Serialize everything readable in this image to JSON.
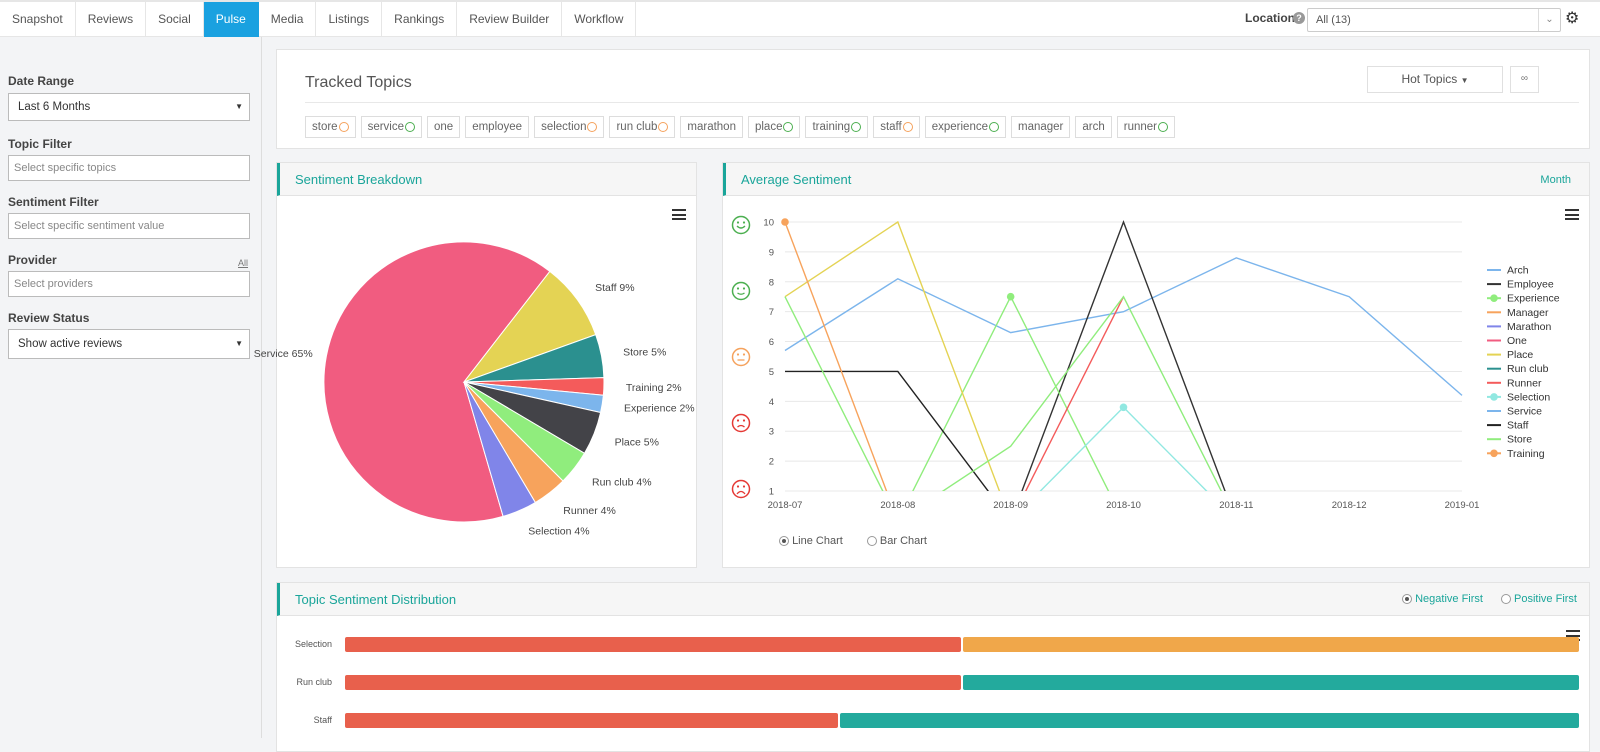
{
  "nav": {
    "tabs": [
      "Snapshot",
      "Reviews",
      "Social",
      "Pulse",
      "Media",
      "Listings",
      "Rankings",
      "Review Builder",
      "Workflow"
    ],
    "active_tab": "Pulse",
    "location_label": "Location",
    "location_value": "All (13)"
  },
  "sidebar": {
    "date_range": {
      "label": "Date Range",
      "value": "Last 6 Months"
    },
    "topic_filter": {
      "label": "Topic Filter",
      "placeholder": "Select specific topics"
    },
    "sentiment_filter": {
      "label": "Sentiment Filter",
      "placeholder": "Select specific sentiment value"
    },
    "provider": {
      "label": "Provider",
      "all_link": "All",
      "placeholder": "Select providers"
    },
    "review_status": {
      "label": "Review Status",
      "value": "Show active reviews"
    }
  },
  "tracked_topics": {
    "title": "Tracked Topics",
    "hot_topics_label": "Hot Topics",
    "more_label": "∞",
    "tags": [
      {
        "name": "store",
        "sentiment": "neutral"
      },
      {
        "name": "service",
        "sentiment": "positive"
      },
      {
        "name": "one",
        "sentiment": "none"
      },
      {
        "name": "employee",
        "sentiment": "none"
      },
      {
        "name": "selection",
        "sentiment": "neutral"
      },
      {
        "name": "run club",
        "sentiment": "neutral"
      },
      {
        "name": "marathon",
        "sentiment": "none"
      },
      {
        "name": "place",
        "sentiment": "positive"
      },
      {
        "name": "training",
        "sentiment": "positive"
      },
      {
        "name": "staff",
        "sentiment": "neutral"
      },
      {
        "name": "experience",
        "sentiment": "positive"
      },
      {
        "name": "manager",
        "sentiment": "none"
      },
      {
        "name": "arch",
        "sentiment": "none"
      },
      {
        "name": "runner",
        "sentiment": "positive"
      }
    ]
  },
  "sentiment_breakdown": {
    "title": "Sentiment Breakdown"
  },
  "average_sentiment": {
    "title": "Average Sentiment",
    "period_label": "Month",
    "chart_type_options": [
      "Line Chart",
      "Bar Chart"
    ],
    "selected_chart_type": "Line Chart"
  },
  "topic_distribution": {
    "title": "Topic Sentiment Distribution",
    "sort_options": [
      "Negative First",
      "Positive First"
    ],
    "selected_sort": "Negative First",
    "rows": [
      {
        "label": "Selection",
        "negative": 0.5,
        "rest_color": "#f0a74a"
      },
      {
        "label": "Run club",
        "negative": 0.5,
        "rest_color": "#23aa9d"
      },
      {
        "label": "Staff",
        "negative": 0.4,
        "rest_color": "#23aa9d"
      }
    ],
    "negative_color": "#e8604c"
  },
  "chart_data": [
    {
      "type": "pie",
      "labels": [
        "Service",
        "Staff",
        "Store",
        "Training",
        "Experience",
        "Place",
        "Run club",
        "Runner",
        "Selection"
      ],
      "display_labels": [
        "Service 65%",
        "Staff 9%",
        "Store 5%",
        "Training 2%",
        "Experience 2%",
        "Place 5%",
        "Run club 4%",
        "Runner 4%",
        "Selection 4%"
      ],
      "values": [
        65,
        9,
        5,
        2,
        2,
        5,
        4,
        4,
        4
      ],
      "colors": [
        "#f15c80",
        "#e4d354",
        "#2b908f",
        "#f45b5b",
        "#7cb5ec",
        "#434348",
        "#90ed7d",
        "#f7a35c",
        "#8085e9"
      ]
    },
    {
      "type": "line",
      "x": [
        "2018-07",
        "2018-08",
        "2018-09",
        "2018-10",
        "2018-11",
        "2018-12",
        "2019-01"
      ],
      "ylim": [
        1,
        10
      ],
      "yticks": [
        1,
        2,
        3,
        4,
        5,
        6,
        7,
        8,
        9,
        10
      ],
      "legend_position": "right",
      "series": [
        {
          "name": "Arch",
          "color": "#7cb5ec",
          "values": [
            5.7,
            8.1,
            6.3,
            7.0,
            8.8,
            7.5,
            4.2
          ]
        },
        {
          "name": "Employee",
          "color": "#333333",
          "values": [
            null,
            null,
            0,
            10,
            0,
            null,
            null
          ]
        },
        {
          "name": "Experience",
          "color": "#90ed7d",
          "marker": true,
          "values": [
            null,
            0,
            7.5,
            0,
            null,
            null,
            null
          ]
        },
        {
          "name": "Manager",
          "color": "#f7a35c",
          "values": [
            null,
            null,
            null,
            null,
            null,
            null,
            null
          ]
        },
        {
          "name": "Marathon",
          "color": "#8085e9",
          "values": [
            null,
            null,
            null,
            null,
            null,
            null,
            null
          ]
        },
        {
          "name": "One",
          "color": "#f15c80",
          "values": [
            null,
            null,
            null,
            null,
            null,
            null,
            null
          ]
        },
        {
          "name": "Place",
          "color": "#e4d354",
          "values": [
            7.5,
            10,
            0,
            null,
            null,
            null,
            null
          ]
        },
        {
          "name": "Run club",
          "color": "#2b908f",
          "values": [
            null,
            null,
            null,
            null,
            null,
            null,
            null
          ]
        },
        {
          "name": "Runner",
          "color": "#f45b5b",
          "values": [
            null,
            null,
            0,
            7.5,
            null,
            null,
            null
          ]
        },
        {
          "name": "Selection",
          "color": "#91e8e1",
          "marker": true,
          "values": [
            null,
            null,
            0,
            3.8,
            0,
            null,
            null
          ]
        },
        {
          "name": "Service",
          "color": "#7cb5ec",
          "values": [
            null,
            null,
            null,
            null,
            null,
            null,
            null
          ]
        },
        {
          "name": "Staff",
          "color": "#222222",
          "values": [
            5,
            5,
            0,
            null,
            null,
            null,
            null
          ]
        },
        {
          "name": "Store",
          "color": "#90ed7d",
          "values": [
            7.5,
            0,
            2.5,
            7.5,
            0,
            null,
            null
          ]
        },
        {
          "name": "Training",
          "color": "#f7a35c",
          "marker": true,
          "values": [
            10,
            0,
            null,
            null,
            null,
            null,
            null
          ]
        }
      ]
    }
  ]
}
